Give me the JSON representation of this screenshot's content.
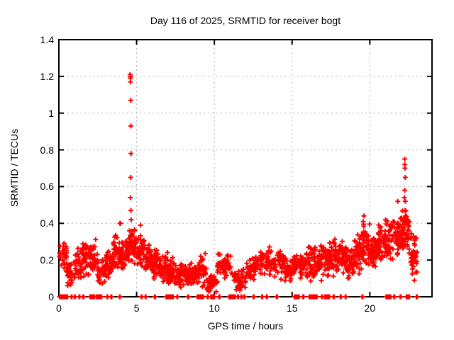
{
  "chart_data": {
    "type": "scatter",
    "title": "Day 116 of 2025, SRMTID for receiver bogt",
    "xlabel": "GPS time / hours",
    "ylabel": "SRMTID / TECUs",
    "xlim": [
      0,
      24
    ],
    "ylim": [
      0,
      1.4
    ],
    "xticks": {
      "values": [
        0,
        5,
        10,
        15,
        20
      ],
      "labels": [
        "0",
        "5",
        "10",
        "15",
        "20"
      ]
    },
    "yticks": {
      "values": [
        0,
        0.2,
        0.4,
        0.6,
        0.8,
        1.0,
        1.2,
        1.4
      ],
      "labels": [
        "0",
        "0.2",
        "0.4",
        "0.6",
        "0.8",
        "1",
        "1.2",
        "1.4"
      ]
    },
    "grid": true,
    "legend": "none",
    "colors": {
      "points": "#ff0000",
      "grid": "#b0b0b0",
      "axis": "#000000",
      "background": "#ffffff"
    },
    "marker": {
      "shape": "plus",
      "size": 7,
      "stroke": 2
    },
    "series_name": "SRMTID",
    "seed": 116,
    "band_segments": [
      {
        "x0": 0.0,
        "x1": 0.5,
        "lo": 0.13,
        "hi": 0.33,
        "n": 28
      },
      {
        "x0": 0.5,
        "x1": 1.0,
        "lo": 0.05,
        "hi": 0.22,
        "n": 30
      },
      {
        "x0": 1.0,
        "x1": 1.5,
        "lo": 0.08,
        "hi": 0.28,
        "n": 32
      },
      {
        "x0": 1.5,
        "x1": 2.0,
        "lo": 0.1,
        "hi": 0.31,
        "n": 35
      },
      {
        "x0": 2.0,
        "x1": 2.5,
        "lo": 0.1,
        "hi": 0.32,
        "n": 35
      },
      {
        "x0": 2.5,
        "x1": 3.0,
        "lo": 0.05,
        "hi": 0.22,
        "n": 30
      },
      {
        "x0": 3.0,
        "x1": 3.5,
        "lo": 0.08,
        "hi": 0.3,
        "n": 35
      },
      {
        "x0": 3.5,
        "x1": 4.0,
        "lo": 0.12,
        "hi": 0.35,
        "n": 40
      },
      {
        "x0": 4.0,
        "x1": 4.5,
        "lo": 0.13,
        "hi": 0.33,
        "n": 45
      },
      {
        "x0": 4.5,
        "x1": 5.0,
        "lo": 0.15,
        "hi": 0.4,
        "n": 50
      },
      {
        "x0": 5.0,
        "x1": 5.5,
        "lo": 0.15,
        "hi": 0.35,
        "n": 45
      },
      {
        "x0": 5.5,
        "x1": 6.0,
        "lo": 0.12,
        "hi": 0.3,
        "n": 40
      },
      {
        "x0": 6.0,
        "x1": 6.5,
        "lo": 0.08,
        "hi": 0.28,
        "n": 40
      },
      {
        "x0": 6.5,
        "x1": 7.0,
        "lo": 0.06,
        "hi": 0.25,
        "n": 40
      },
      {
        "x0": 7.0,
        "x1": 7.5,
        "lo": 0.06,
        "hi": 0.22,
        "n": 40
      },
      {
        "x0": 7.5,
        "x1": 8.0,
        "lo": 0.04,
        "hi": 0.2,
        "n": 40
      },
      {
        "x0": 8.0,
        "x1": 8.5,
        "lo": 0.05,
        "hi": 0.18,
        "n": 40
      },
      {
        "x0": 8.5,
        "x1": 9.0,
        "lo": 0.06,
        "hi": 0.2,
        "n": 40
      },
      {
        "x0": 9.0,
        "x1": 9.5,
        "lo": 0.05,
        "hi": 0.24,
        "n": 35
      },
      {
        "x0": 9.5,
        "x1": 10.2,
        "lo": 0.02,
        "hi": 0.12,
        "n": 45
      },
      {
        "x0": 10.2,
        "x1": 11.1,
        "lo": 0.08,
        "hi": 0.26,
        "n": 50
      },
      {
        "x0": 11.1,
        "x1": 12.0,
        "lo": 0.03,
        "hi": 0.16,
        "n": 45
      },
      {
        "x0": 12.0,
        "x1": 12.6,
        "lo": 0.08,
        "hi": 0.22,
        "n": 35
      },
      {
        "x0": 12.6,
        "x1": 13.2,
        "lo": 0.1,
        "hi": 0.25,
        "n": 35
      },
      {
        "x0": 13.2,
        "x1": 14.5,
        "lo": 0.08,
        "hi": 0.28,
        "n": 70
      },
      {
        "x0": 14.5,
        "x1": 15.0,
        "lo": 0.08,
        "hi": 0.22,
        "n": 35
      },
      {
        "x0": 15.0,
        "x1": 15.5,
        "lo": 0.1,
        "hi": 0.25,
        "n": 35
      },
      {
        "x0": 15.5,
        "x1": 16.0,
        "lo": 0.08,
        "hi": 0.25,
        "n": 35
      },
      {
        "x0": 16.0,
        "x1": 16.5,
        "lo": 0.05,
        "hi": 0.31,
        "n": 40
      },
      {
        "x0": 16.5,
        "x1": 17.0,
        "lo": 0.08,
        "hi": 0.28,
        "n": 40
      },
      {
        "x0": 17.0,
        "x1": 17.5,
        "lo": 0.1,
        "hi": 0.3,
        "n": 40
      },
      {
        "x0": 17.5,
        "x1": 18.0,
        "lo": 0.1,
        "hi": 0.32,
        "n": 40
      },
      {
        "x0": 18.0,
        "x1": 18.5,
        "lo": 0.12,
        "hi": 0.35,
        "n": 40
      },
      {
        "x0": 18.5,
        "x1": 19.0,
        "lo": 0.1,
        "hi": 0.28,
        "n": 40
      },
      {
        "x0": 19.0,
        "x1": 19.5,
        "lo": 0.12,
        "hi": 0.38,
        "n": 40
      },
      {
        "x0": 19.5,
        "x1": 20.0,
        "lo": 0.15,
        "hi": 0.42,
        "n": 42
      },
      {
        "x0": 20.0,
        "x1": 20.5,
        "lo": 0.15,
        "hi": 0.35,
        "n": 45
      },
      {
        "x0": 20.5,
        "x1": 21.0,
        "lo": 0.18,
        "hi": 0.4,
        "n": 45
      },
      {
        "x0": 21.0,
        "x1": 21.5,
        "lo": 0.18,
        "hi": 0.43,
        "n": 45
      },
      {
        "x0": 21.5,
        "x1": 22.0,
        "lo": 0.22,
        "hi": 0.46,
        "n": 45
      },
      {
        "x0": 22.0,
        "x1": 22.6,
        "lo": 0.22,
        "hi": 0.48,
        "n": 50
      },
      {
        "x0": 22.6,
        "x1": 23.05,
        "lo": 0.08,
        "hi": 0.38,
        "n": 40
      }
    ],
    "spike_points": [
      [
        4.58,
        1.21
      ],
      [
        4.62,
        1.2
      ],
      [
        4.6,
        1.19
      ],
      [
        4.61,
        1.17
      ],
      [
        4.62,
        1.07
      ],
      [
        4.63,
        0.93
      ],
      [
        4.64,
        0.78
      ],
      [
        4.62,
        0.65
      ],
      [
        4.6,
        0.54
      ],
      [
        4.63,
        0.47
      ],
      [
        4.65,
        0.42
      ],
      [
        3.93,
        0.4
      ],
      [
        3.97,
        0.4
      ],
      [
        5.25,
        0.39
      ],
      [
        22.25,
        0.75
      ],
      [
        22.25,
        0.72
      ],
      [
        22.26,
        0.7
      ],
      [
        22.28,
        0.65
      ],
      [
        22.25,
        0.58
      ],
      [
        22.22,
        0.54
      ],
      [
        22.28,
        0.52
      ],
      [
        22.26,
        0.47
      ],
      [
        22.3,
        0.44
      ],
      [
        21.8,
        0.52
      ],
      [
        19.62,
        0.44
      ],
      [
        19.58,
        0.41
      ]
    ],
    "zero_runs": [
      [
        0.05,
        0.55
      ],
      [
        0.8,
        0.84
      ],
      [
        1.0,
        1.04
      ],
      [
        1.3,
        1.34
      ],
      [
        1.55,
        1.6
      ],
      [
        2.0,
        2.3
      ],
      [
        2.42,
        2.75
      ],
      [
        3.1,
        3.14
      ],
      [
        3.35,
        3.4
      ],
      [
        3.9,
        3.94
      ],
      [
        5.3,
        5.34
      ],
      [
        5.56,
        5.6
      ],
      [
        6.15,
        6.2
      ],
      [
        6.9,
        7.35
      ],
      [
        7.6,
        7.64
      ],
      [
        8.3,
        8.34
      ],
      [
        8.9,
        9.3
      ],
      [
        9.55,
        9.6
      ],
      [
        9.78,
        10.0
      ],
      [
        10.3,
        10.35
      ],
      [
        10.95,
        11.35
      ],
      [
        11.5,
        11.55
      ],
      [
        11.72,
        11.76
      ],
      [
        11.9,
        11.95
      ],
      [
        12.5,
        12.55
      ],
      [
        13.05,
        13.1
      ],
      [
        13.35,
        13.4
      ],
      [
        14.0,
        14.05
      ],
      [
        15.15,
        15.45
      ],
      [
        15.7,
        15.75
      ],
      [
        16.1,
        16.6
      ],
      [
        16.9,
        16.95
      ],
      [
        17.1,
        17.4
      ],
      [
        17.65,
        17.7
      ],
      [
        18.1,
        18.15
      ],
      [
        18.42,
        18.46
      ],
      [
        19.5,
        19.55
      ],
      [
        21.05,
        21.35
      ],
      [
        21.55,
        21.6
      ],
      [
        21.95,
        22.0
      ],
      [
        22.35,
        22.55
      ],
      [
        23.0,
        23.05
      ]
    ]
  }
}
